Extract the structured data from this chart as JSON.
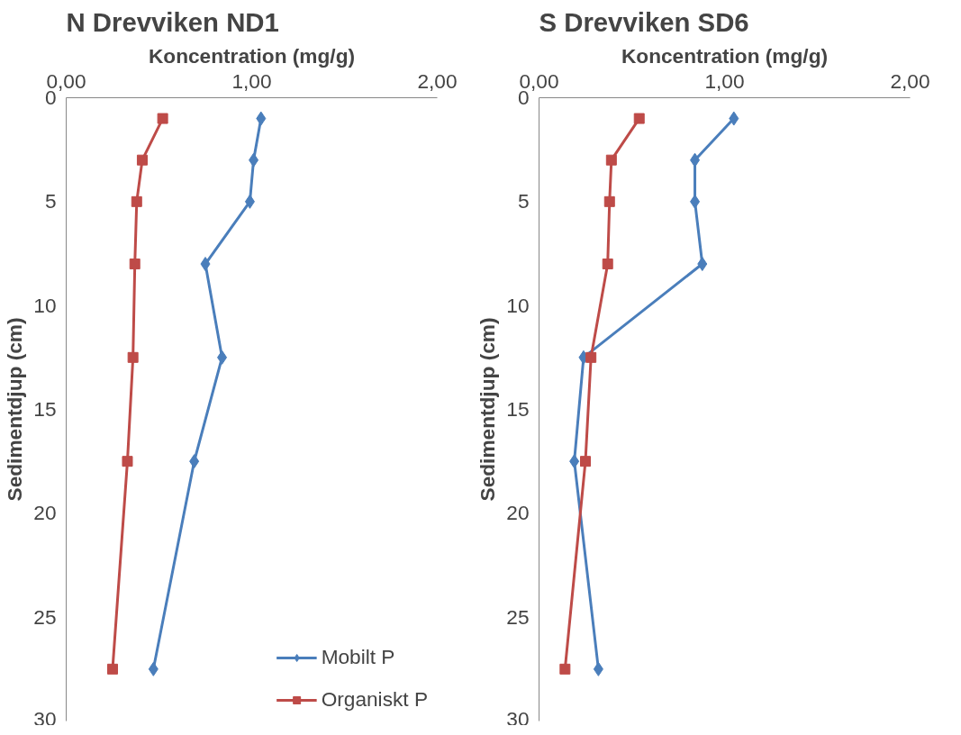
{
  "chart_data": [
    {
      "type": "line",
      "title": "N Drevviken ND1",
      "xlabel": "Koncentration (mg/g)",
      "ylabel": "Sedimentdjup (cm)",
      "orientation": "horizontal",
      "xlim": [
        0,
        2
      ],
      "xticks": [
        {
          "value": 0,
          "label": "0,00"
        },
        {
          "value": 1,
          "label": "1,00"
        },
        {
          "value": 2,
          "label": "2,00"
        }
      ],
      "ylim": [
        30,
        0
      ],
      "yticks": [
        0,
        5,
        10,
        15,
        20,
        25,
        30
      ],
      "grid": false,
      "legend": "bottom right",
      "x": [
        1,
        3,
        5,
        8,
        12.5,
        17.5,
        27.5
      ],
      "series": [
        {
          "name": "Mobilt P",
          "color": "#4a7ebb",
          "marker": "diamond",
          "values": [
            1.05,
            1.01,
            0.99,
            0.75,
            0.84,
            0.69,
            0.47
          ]
        },
        {
          "name": "Organiskt P",
          "color": "#be4b48",
          "marker": "square",
          "values": [
            0.52,
            0.41,
            0.38,
            0.37,
            0.36,
            0.33,
            0.25
          ]
        }
      ]
    },
    {
      "type": "line",
      "title": "S Drevviken SD6",
      "xlabel": "Koncentration (mg/g)",
      "ylabel": "Sedimentdjup (cm)",
      "orientation": "horizontal",
      "xlim": [
        0,
        2
      ],
      "xticks": [
        {
          "value": 0,
          "label": "0,00"
        },
        {
          "value": 1,
          "label": "1,00"
        },
        {
          "value": 2,
          "label": "2,00"
        }
      ],
      "ylim": [
        30,
        0
      ],
      "yticks": [
        0,
        5,
        10,
        15,
        20,
        25,
        30
      ],
      "grid": false,
      "x": [
        1,
        3,
        5,
        8,
        12.5,
        17.5,
        27.5
      ],
      "series": [
        {
          "color": "#4a7ebb",
          "marker": "diamond",
          "values": [
            1.05,
            0.84,
            0.84,
            0.88,
            0.24,
            0.19,
            0.32
          ]
        },
        {
          "color": "#be4b48",
          "marker": "square",
          "values": [
            0.54,
            0.39,
            0.38,
            0.37,
            0.28,
            0.25,
            0.14
          ]
        }
      ]
    }
  ]
}
